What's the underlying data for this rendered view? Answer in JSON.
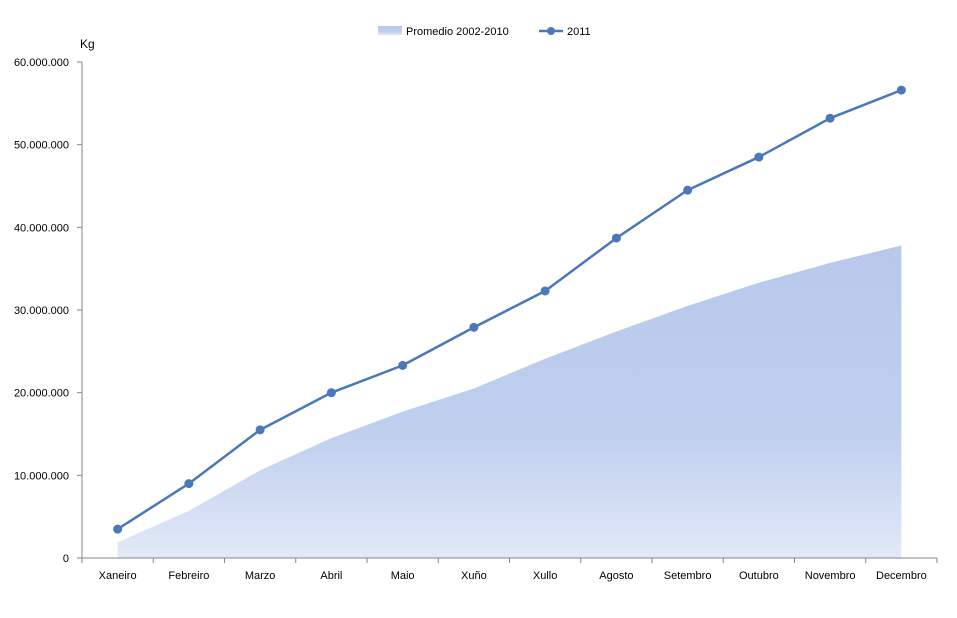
{
  "chart_data": {
    "type": "line",
    "title": "",
    "unit_label": "Kg",
    "xlabel": "",
    "ylabel": "",
    "categories": [
      "Xaneiro",
      "Febreiro",
      "Marzo",
      "Abril",
      "Maio",
      "Xuño",
      "Xullo",
      "Agosto",
      "Setembro",
      "Outubro",
      "Novembro",
      "Decembro"
    ],
    "ylim": [
      0,
      60000000
    ],
    "yticks": [
      0,
      10000000,
      20000000,
      30000000,
      40000000,
      50000000,
      60000000
    ],
    "ytick_labels": [
      "0",
      "10.000.000",
      "20.000.000",
      "30.000.000",
      "40.000.000",
      "50.000.000",
      "60.000.000"
    ],
    "grid": false,
    "legend_position": "top-center",
    "series": [
      {
        "name": "Promedio 2002-2010",
        "kind": "area",
        "color": "#b7c8eb",
        "values": [
          1900000,
          5700000,
          10600000,
          14500000,
          17700000,
          20500000,
          24100000,
          27400000,
          30500000,
          33300000,
          35700000,
          37800000
        ]
      },
      {
        "name": "2011",
        "kind": "line-markers",
        "color": "#4a78b8",
        "values": [
          3500000,
          9000000,
          15500000,
          20000000,
          23300000,
          27900000,
          32300000,
          38700000,
          44500000,
          48500000,
          53200000,
          56600000
        ]
      }
    ]
  }
}
